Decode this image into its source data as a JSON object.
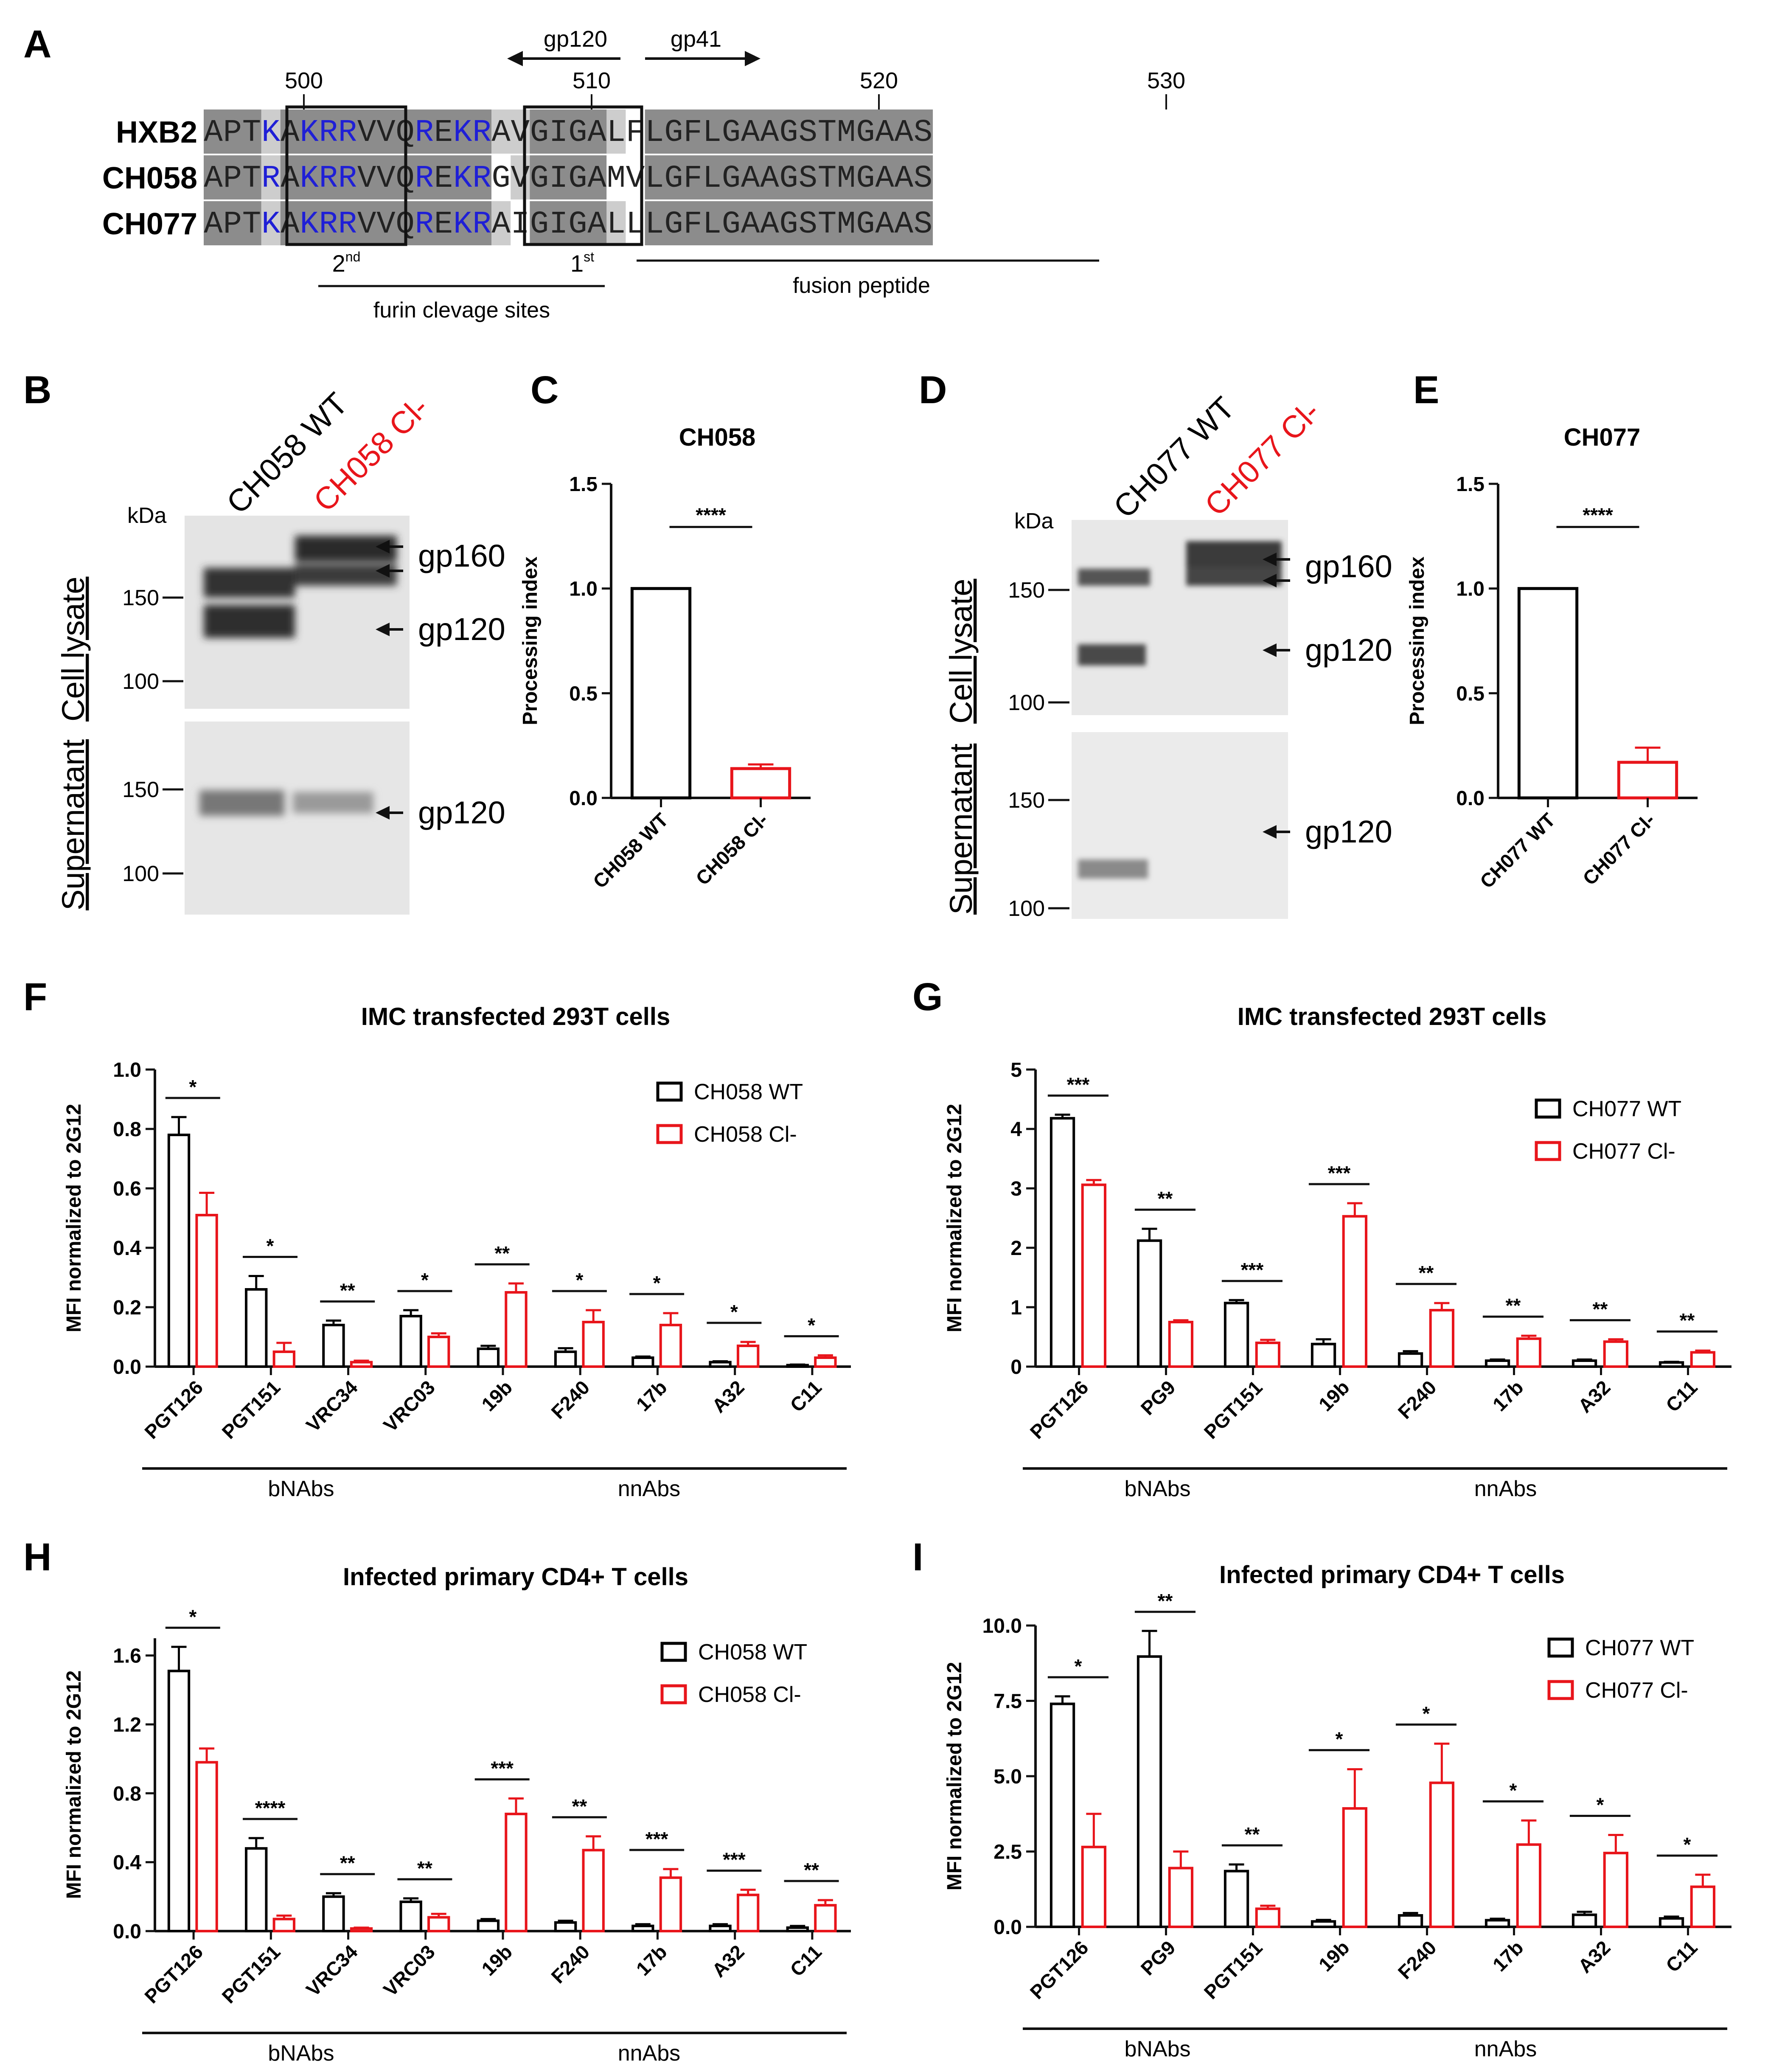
{
  "panels": {
    "A": {
      "label": "A",
      "positions": [
        "500",
        "510",
        "520",
        "530"
      ],
      "arrows": {
        "left": "gp120",
        "right": "gp41"
      },
      "sequences": [
        {
          "name": "HXB2",
          "seq": "APTKAKRRVVQREKRAVGIGALFLGFLGAAGSTMGAAS"
        },
        {
          "name": "CH058",
          "seq": "APTRAKRRVVQREKRGVGIGAMVLGFLGAAGSTMGAAS"
        },
        {
          "name": "CH077",
          "seq": "APTKAKRRVVQREKRAIGIGALLLGFLGAAGSTMGAAS"
        }
      ],
      "sites": {
        "second": "2",
        "second_sup": "nd",
        "first": "1",
        "first_sup": "st"
      },
      "furin_label": "furin clevage sites",
      "fusion_label": "fusion peptide",
      "colors": {
        "shade_dark": "#8c8c8c",
        "shade_light": "#cdcdcd",
        "basic_residue": "#1f1fd6"
      }
    },
    "B": {
      "label": "B",
      "lanes": [
        "CH058 WT",
        "CH058 Cl-"
      ],
      "kda": "kDa",
      "markers_top": [
        "150",
        "100"
      ],
      "markers_bottom": [
        "150",
        "100"
      ],
      "sections": [
        "Cell lysate",
        "Supernatant"
      ],
      "bands": [
        "gp160",
        "gp120",
        "gp120"
      ]
    },
    "D": {
      "label": "D",
      "lanes": [
        "CH077 WT",
        "CH077 Cl-"
      ],
      "kda": "kDa",
      "markers_top": [
        "150",
        "100"
      ],
      "markers_bottom": [
        "150",
        "100"
      ],
      "sections": [
        "Cell lysate",
        "Supernatant"
      ],
      "bands": [
        "gp160",
        "gp120",
        "gp120"
      ]
    },
    "F": {
      "label": "F"
    },
    "G": {
      "label": "G"
    },
    "H": {
      "label": "H"
    },
    "I": {
      "label": "I"
    },
    "C": {
      "label": "C"
    },
    "E": {
      "label": "E"
    }
  },
  "colors": {
    "wt": "#000000",
    "cl": "#e8151b"
  },
  "chart_data": [
    {
      "id": "C",
      "type": "bar",
      "title": "CH058",
      "ylabel": "Processing index",
      "ylim": [
        0,
        1.5
      ],
      "yticks": [
        "0.0",
        "0.5",
        "1.0",
        "1.5"
      ],
      "categories": [
        "CH058 WT",
        "CH058 Cl-"
      ],
      "values": [
        1.0,
        0.14
      ],
      "errors": [
        0,
        0.02
      ],
      "significance": "****"
    },
    {
      "id": "E",
      "type": "bar",
      "title": "CH077",
      "ylabel": "Processing index",
      "ylim": [
        0,
        1.5
      ],
      "yticks": [
        "0.0",
        "0.5",
        "1.0",
        "1.5"
      ],
      "categories": [
        "CH077 WT",
        "CH077 Cl-"
      ],
      "values": [
        1.0,
        0.17
      ],
      "errors": [
        0,
        0.07
      ],
      "significance": "****"
    },
    {
      "id": "F",
      "type": "bar",
      "title": "IMC transfected 293T cells",
      "ylabel": "MFI normalized to 2G12",
      "ylim": [
        0,
        1.0
      ],
      "yticks": [
        "0.0",
        "0.2",
        "0.4",
        "0.6",
        "0.8",
        "1.0"
      ],
      "categories": [
        "PGT126",
        "PGT151",
        "VRC34",
        "VRC03",
        "19b",
        "F240",
        "17b",
        "A32",
        "C11"
      ],
      "series": [
        {
          "name": "CH058 WT",
          "values": [
            0.78,
            0.26,
            0.14,
            0.17,
            0.06,
            0.05,
            0.03,
            0.015,
            0.005
          ],
          "errors": [
            0.06,
            0.045,
            0.015,
            0.02,
            0.01,
            0.012,
            0.004,
            0.003,
            0.002
          ]
        },
        {
          "name": "CH058 Cl-",
          "values": [
            0.51,
            0.05,
            0.015,
            0.1,
            0.25,
            0.15,
            0.14,
            0.07,
            0.03
          ],
          "errors": [
            0.075,
            0.03,
            0.005,
            0.012,
            0.03,
            0.04,
            0.04,
            0.013,
            0.008
          ]
        }
      ],
      "significance": [
        "*",
        "*",
        "**",
        "*",
        "**",
        "*",
        "*",
        "*",
        "*"
      ],
      "groups": [
        {
          "label": "bNAbs",
          "from": 0,
          "to": 3
        },
        {
          "label": "nnAbs",
          "from": 4,
          "to": 8
        }
      ]
    },
    {
      "id": "G",
      "type": "bar",
      "title": "IMC transfected 293T cells",
      "ylabel": "MFI normalized to 2G12",
      "ylim": [
        0,
        5
      ],
      "yticks": [
        "0",
        "1",
        "2",
        "3",
        "4",
        "5"
      ],
      "categories": [
        "PGT126",
        "PG9",
        "PGT151",
        "19b",
        "F240",
        "17b",
        "A32",
        "C11"
      ],
      "series": [
        {
          "name": "CH077 WT",
          "values": [
            4.18,
            2.12,
            1.07,
            0.38,
            0.22,
            0.1,
            0.1,
            0.07
          ],
          "errors": [
            0.06,
            0.2,
            0.05,
            0.08,
            0.04,
            0.02,
            0.02,
            0.01
          ]
        },
        {
          "name": "CH077 Cl-",
          "values": [
            3.06,
            0.75,
            0.4,
            2.53,
            0.95,
            0.47,
            0.42,
            0.24
          ],
          "errors": [
            0.08,
            0.03,
            0.05,
            0.22,
            0.12,
            0.05,
            0.04,
            0.03
          ]
        }
      ],
      "significance": [
        "***",
        "**",
        "***",
        "***",
        "**",
        "**",
        "**",
        "**"
      ],
      "groups": [
        {
          "label": "bNAbs",
          "from": 0,
          "to": 2
        },
        {
          "label": "nnAbs",
          "from": 3,
          "to": 7
        }
      ]
    },
    {
      "id": "H",
      "type": "bar",
      "title": "Infected primary CD4+ T cells",
      "ylabel": "MFI normalized to 2G12",
      "ylim": [
        0,
        1.7
      ],
      "yticks": [
        "0.0",
        "0.4",
        "0.8",
        "1.2",
        "1.6"
      ],
      "ytickvals": [
        0,
        0.4,
        0.8,
        1.2,
        1.6
      ],
      "categories": [
        "PGT126",
        "PGT151",
        "VRC34",
        "VRC03",
        "19b",
        "F240",
        "17b",
        "A32",
        "C11"
      ],
      "series": [
        {
          "name": "CH058 WT",
          "values": [
            1.51,
            0.48,
            0.2,
            0.17,
            0.06,
            0.05,
            0.03,
            0.03,
            0.02
          ],
          "errors": [
            0.14,
            0.06,
            0.02,
            0.02,
            0.01,
            0.01,
            0.01,
            0.01,
            0.01
          ]
        },
        {
          "name": "CH058 Cl-",
          "values": [
            0.98,
            0.07,
            0.015,
            0.08,
            0.68,
            0.47,
            0.31,
            0.21,
            0.15
          ],
          "errors": [
            0.08,
            0.02,
            0.005,
            0.02,
            0.09,
            0.08,
            0.05,
            0.03,
            0.03
          ]
        }
      ],
      "significance": [
        "*",
        "****",
        "**",
        "**",
        "***",
        "**",
        "***",
        "***",
        "**"
      ],
      "groups": [
        {
          "label": "bNAbs",
          "from": 0,
          "to": 3
        },
        {
          "label": "nnAbs",
          "from": 4,
          "to": 8
        }
      ]
    },
    {
      "id": "I",
      "type": "bar",
      "title": "Infected primary CD4+ T cells",
      "ylabel": "MFI normalized to 2G12",
      "ylim": [
        0,
        10
      ],
      "yticks": [
        "0.0",
        "2.5",
        "5.0",
        "7.5",
        "10.0"
      ],
      "ytickvals": [
        0,
        2.5,
        5,
        7.5,
        10
      ],
      "categories": [
        "PGT126",
        "PG9",
        "PGT151",
        "19b",
        "F240",
        "17b",
        "A32",
        "C11"
      ],
      "series": [
        {
          "name": "CH077 WT",
          "values": [
            7.4,
            8.97,
            1.85,
            0.18,
            0.38,
            0.22,
            0.4,
            0.28
          ],
          "errors": [
            0.25,
            0.85,
            0.22,
            0.05,
            0.08,
            0.05,
            0.1,
            0.06
          ]
        },
        {
          "name": "CH077 Cl-",
          "values": [
            2.65,
            1.95,
            0.6,
            3.93,
            4.78,
            2.73,
            2.45,
            1.33
          ],
          "errors": [
            1.1,
            0.55,
            0.1,
            1.3,
            1.3,
            0.8,
            0.6,
            0.4
          ]
        }
      ],
      "significance": [
        "*",
        "**",
        "**",
        "*",
        "*",
        "*",
        "*",
        "*"
      ],
      "groups": [
        {
          "label": "bNAbs",
          "from": 0,
          "to": 2
        },
        {
          "label": "nnAbs",
          "from": 3,
          "to": 7
        }
      ]
    }
  ]
}
